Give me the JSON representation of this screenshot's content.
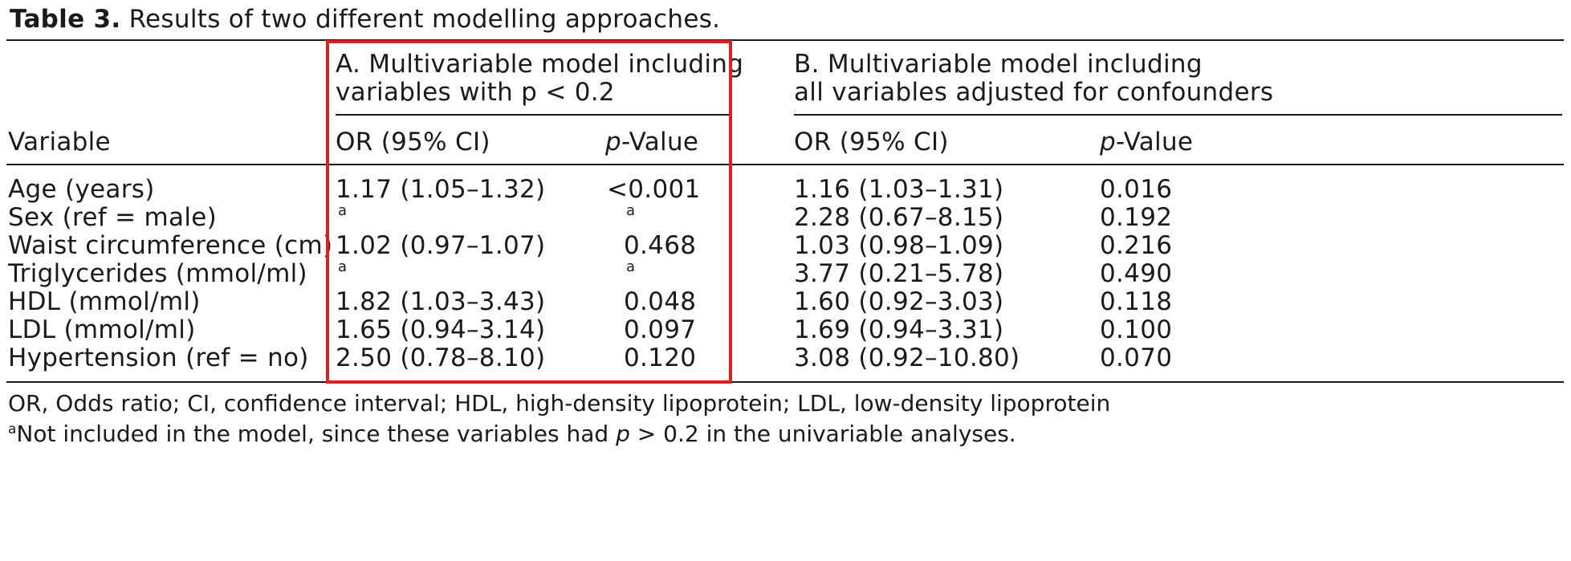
{
  "title": {
    "label": "Table 3.",
    "text": "Results of two different modelling approaches."
  },
  "groups": {
    "a_line1": "A. Multivariable model including",
    "a_line2": "variables with p < 0.2",
    "b_line1": "B. Multivariable model including",
    "b_line2": "all variables adjusted for confounders"
  },
  "columns": {
    "variable": "Variable",
    "or_a": "OR (95% CI)",
    "p_italic": "p",
    "p_suffix": "-Value",
    "or_b": "OR (95% CI)"
  },
  "rows": [
    {
      "variable": "Age (years)",
      "or_a": "1.17 (1.05–1.32)",
      "p_a": "<0.001",
      "or_b": "1.16 (1.03–1.31)",
      "p_b": "0.016"
    },
    {
      "variable": "Sex (ref = male)",
      "or_a": "a",
      "p_a": "a",
      "or_b": "2.28 (0.67–8.15)",
      "p_b": "0.192"
    },
    {
      "variable": "Waist circumference (cm)",
      "or_a": "1.02 (0.97–1.07)",
      "p_a": "0.468",
      "or_b": "1.03 (0.98–1.09)",
      "p_b": "0.216"
    },
    {
      "variable": "Triglycerides (mmol/ml)",
      "or_a": "a",
      "p_a": "a",
      "or_b": "3.77 (0.21–5.78)",
      "p_b": "0.490"
    },
    {
      "variable": "HDL (mmol/ml)",
      "or_a": "1.82 (1.03–3.43)",
      "p_a": "0.048",
      "or_b": "1.60 (0.92–3.03)",
      "p_b": "0.118"
    },
    {
      "variable": "LDL (mmol/ml)",
      "or_a": "1.65 (0.94–3.14)",
      "p_a": "0.097",
      "or_b": "1.69 (0.94–3.31)",
      "p_b": "0.100"
    },
    {
      "variable": "Hypertension (ref = no)",
      "or_a": "2.50 (0.78–8.10)",
      "p_a": "0.120",
      "or_b": "3.08 (0.92–10.80)",
      "p_b": "0.070"
    }
  ],
  "footnotes": {
    "abbrev": "OR, Odds ratio; CI, confidence interval; HDL, high-density lipoprotein; LDL, low-density lipoprotein",
    "a_mark": "a",
    "a_text_before": "Not included in the model, since these variables had ",
    "a_text_p": "p",
    "a_text_after": " > 0.2 in the univariable analyses."
  },
  "colors": {
    "highlight_box": "#e02020",
    "text": "#1a1a1a"
  }
}
